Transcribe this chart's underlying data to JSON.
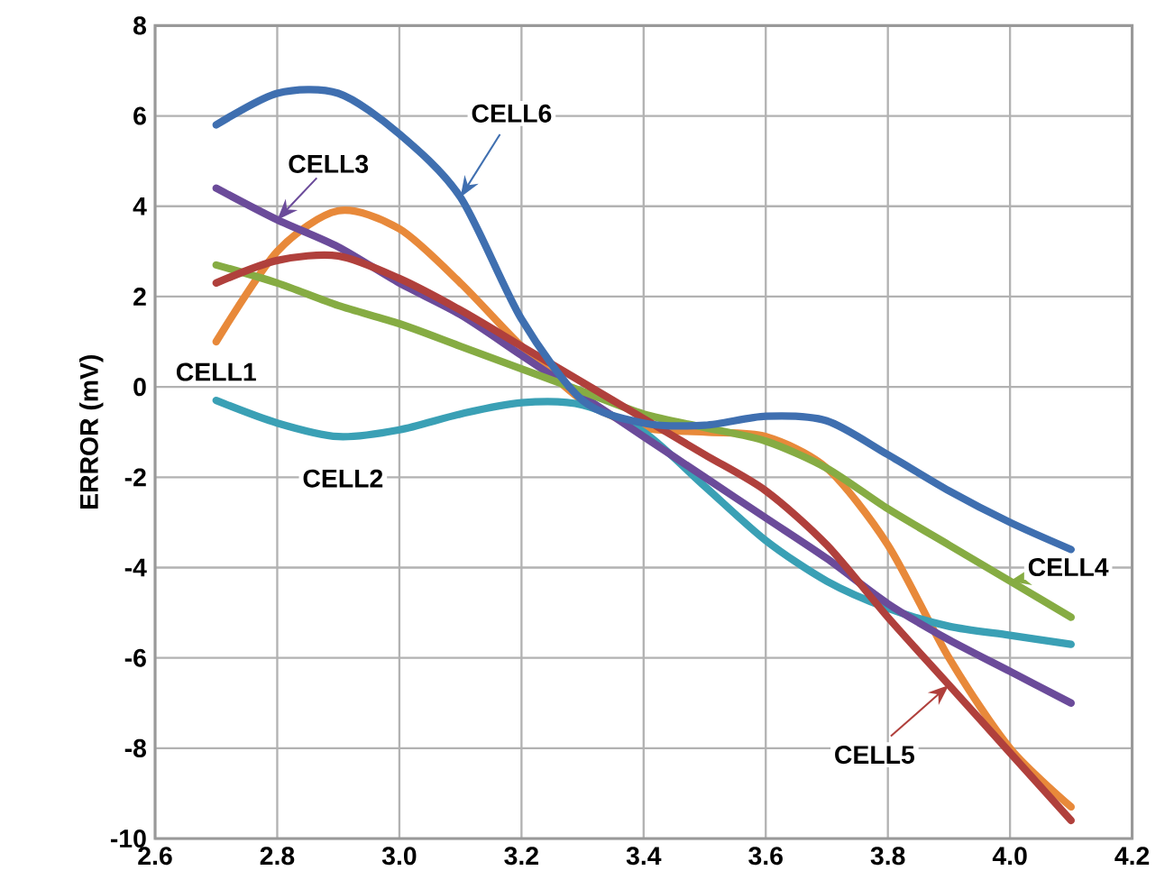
{
  "chart_data": {
    "type": "line",
    "ylabel": "ERROR (mV)",
    "x": [
      2.7,
      2.8,
      2.9,
      3.0,
      3.1,
      3.2,
      3.3,
      3.4,
      3.5,
      3.6,
      3.7,
      3.8,
      3.9,
      4.0,
      4.1
    ],
    "series": [
      {
        "name": "CELL1",
        "color": "#e8893a",
        "values": [
          1.0,
          3.0,
          3.9,
          3.5,
          2.3,
          0.9,
          -0.3,
          -0.9,
          -1.0,
          -1.1,
          -1.8,
          -3.5,
          -6.0,
          -8.0,
          -9.3
        ]
      },
      {
        "name": "CELL2",
        "color": "#3aa0b5",
        "values": [
          -0.3,
          -0.8,
          -1.1,
          -0.95,
          -0.6,
          -0.35,
          -0.4,
          -1.0,
          -2.2,
          -3.4,
          -4.3,
          -4.9,
          -5.3,
          -5.5,
          -5.7
        ]
      },
      {
        "name": "CELL3",
        "color": "#6b4b9a",
        "values": [
          4.4,
          3.7,
          3.1,
          2.3,
          1.6,
          0.7,
          -0.2,
          -1.1,
          -2.0,
          -2.9,
          -3.8,
          -4.8,
          -5.6,
          -6.3,
          -7.0
        ]
      },
      {
        "name": "CELL4",
        "color": "#86ac43",
        "values": [
          2.7,
          2.3,
          1.8,
          1.4,
          0.9,
          0.4,
          -0.1,
          -0.6,
          -0.9,
          -1.2,
          -1.8,
          -2.7,
          -3.5,
          -4.3,
          -5.1
        ]
      },
      {
        "name": "CELL5",
        "color": "#b0403c",
        "values": [
          2.3,
          2.8,
          2.9,
          2.4,
          1.7,
          0.9,
          0.1,
          -0.7,
          -1.5,
          -2.3,
          -3.5,
          -5.1,
          -6.6,
          -8.1,
          -9.6
        ]
      },
      {
        "name": "CELL6",
        "color": "#3f6fb0",
        "values": [
          5.8,
          6.5,
          6.5,
          5.6,
          4.2,
          1.5,
          -0.3,
          -0.8,
          -0.85,
          -0.65,
          -0.75,
          -1.5,
          -2.3,
          -3.0,
          -3.6
        ]
      }
    ],
    "xlim": [
      2.6,
      4.2
    ],
    "xticks": [
      2.6,
      2.8,
      {
        "value": 3,
        "label": "3.0"
      },
      3.2,
      3.4,
      3.6,
      3.8,
      {
        "value": 4,
        "label": "4.0"
      },
      4.2
    ],
    "ylim": [
      -10,
      8
    ],
    "yticks": [
      -10,
      -8,
      -6,
      -4,
      -2,
      0,
      2,
      4,
      6,
      8
    ],
    "grid": true,
    "marker": "none",
    "line_style": "solid"
  }
}
